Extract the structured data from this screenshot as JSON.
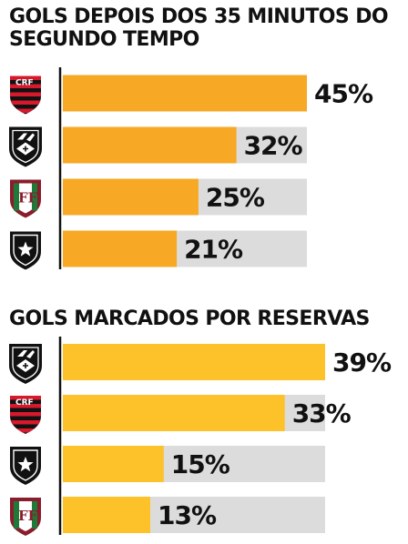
{
  "colors": {
    "bar_orange": "#f7a824",
    "bar_yellow": "#fdc22a",
    "track": "#dcdcdc",
    "axis": "#111111",
    "text": "#111111"
  },
  "chart_data": [
    {
      "type": "bar",
      "orientation": "horizontal",
      "title": "GOLS DEPOIS DOS 35 MINUTOS DO SEGUNDO TEMPO",
      "categories": [
        "Flamengo",
        "Vasco",
        "Fluminense",
        "Botafogo"
      ],
      "category_icons": [
        "flamengo-crest-icon",
        "vasco-crest-icon",
        "fluminense-crest-icon",
        "botafogo-crest-icon"
      ],
      "values": [
        45,
        32,
        25,
        21
      ],
      "value_labels": [
        "45%",
        "32%",
        "25%",
        "21%"
      ],
      "unit": "%",
      "xlim": [
        0,
        45
      ],
      "bar_color": "#f7a824",
      "grid": false,
      "legend": "none"
    },
    {
      "type": "bar",
      "orientation": "horizontal",
      "title": "GOLS MARCADOS POR RESERVAS",
      "categories": [
        "Vasco",
        "Flamengo",
        "Botafogo",
        "Fluminense"
      ],
      "category_icons": [
        "vasco-crest-icon",
        "flamengo-crest-icon",
        "botafogo-crest-icon",
        "fluminense-crest-icon"
      ],
      "values": [
        39,
        33,
        15,
        13
      ],
      "value_labels": [
        "39%",
        "33%",
        "15%",
        "13%"
      ],
      "unit": "%",
      "xlim": [
        0,
        39
      ],
      "bar_color": "#fdc22a",
      "grid": false,
      "legend": "none"
    }
  ]
}
